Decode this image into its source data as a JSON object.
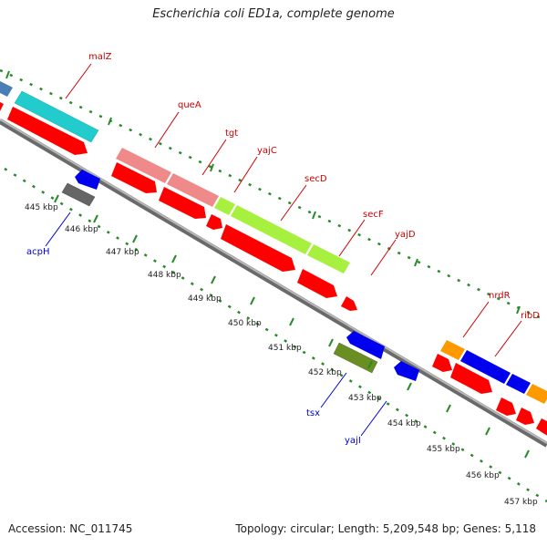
{
  "title": "Escherichia coli ED1a, complete genome",
  "footer": {
    "accession": "Accession: NC_011745",
    "summary": "Topology: circular; Length: 5,209,548 bp; Genes: 5,118"
  },
  "colors": {
    "backbone": "#888888",
    "outer_dots": "#2a8a2a",
    "forward_label": "#cc0000",
    "reverse_label": "#0000cc",
    "cds_forward": "#ff0000",
    "cds_reverse": "#0000ff"
  },
  "tick_labels": [
    "445 kbp",
    "446 kbp",
    "447 kbp",
    "448 kbp",
    "449 kbp",
    "450 kbp",
    "451 kbp",
    "452 kbp",
    "453 kbp",
    "454 kbp",
    "455 kbp",
    "456 kbp",
    "457 kbp"
  ],
  "forward_labels": [
    "malZ",
    "queA",
    "tgt",
    "yajC",
    "secD",
    "secF",
    "yajD",
    "nrdR",
    "ribD"
  ],
  "reverse_labels": [
    "acpH",
    "tsx",
    "yajI"
  ]
}
